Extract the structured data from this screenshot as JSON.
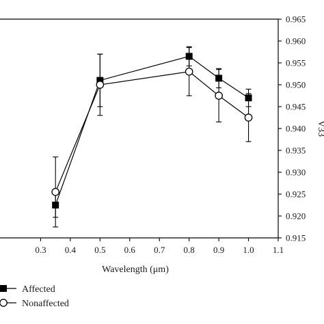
{
  "chart_data": {
    "type": "line",
    "title": "",
    "xlabel": "Wavelength (μm)",
    "ylabel": "V33",
    "xlim": [
      0.2,
      1.1
    ],
    "ylim": [
      0.915,
      0.965
    ],
    "x_ticks": [
      0.3,
      0.4,
      0.5,
      0.6,
      0.7,
      0.8,
      0.9,
      1.0,
      1.1
    ],
    "x_tick_labels": [
      "0.3",
      "0.4",
      "0.5",
      "0.6",
      "0.7",
      "0.8",
      "0.9",
      "1.0",
      "1.1"
    ],
    "y_ticks": [
      0.915,
      0.92,
      0.925,
      0.93,
      0.935,
      0.94,
      0.945,
      0.95,
      0.955,
      0.96,
      0.965
    ],
    "y_tick_labels": [
      "0.915",
      "0.920",
      "0.925",
      "0.930",
      "0.935",
      "0.940",
      "0.945",
      "0.950",
      "0.955",
      "0.960",
      "0.965"
    ],
    "grid": false,
    "legend_position": "bottom-left",
    "series": [
      {
        "name": "Affected",
        "marker": "filled-square",
        "color": "#000000",
        "points": [
          {
            "x": 0.35,
            "y": 0.9225,
            "err": 0.0028
          },
          {
            "x": 0.5,
            "y": 0.951,
            "err": 0.006
          },
          {
            "x": 0.8,
            "y": 0.9565,
            "err": 0.0022
          },
          {
            "x": 0.9,
            "y": 0.9515,
            "err": 0.0022
          },
          {
            "x": 1.0,
            "y": 0.947,
            "err": 0.002
          }
        ]
      },
      {
        "name": "Nonaffected",
        "marker": "open-circle",
        "color": "#000000",
        "points": [
          {
            "x": 0.35,
            "y": 0.9255,
            "err": 0.008
          },
          {
            "x": 0.5,
            "y": 0.95,
            "err": 0.007
          },
          {
            "x": 0.8,
            "y": 0.953,
            "err": 0.0055
          },
          {
            "x": 0.9,
            "y": 0.9475,
            "err": 0.006
          },
          {
            "x": 1.0,
            "y": 0.9425,
            "err": 0.0055
          }
        ]
      }
    ]
  }
}
